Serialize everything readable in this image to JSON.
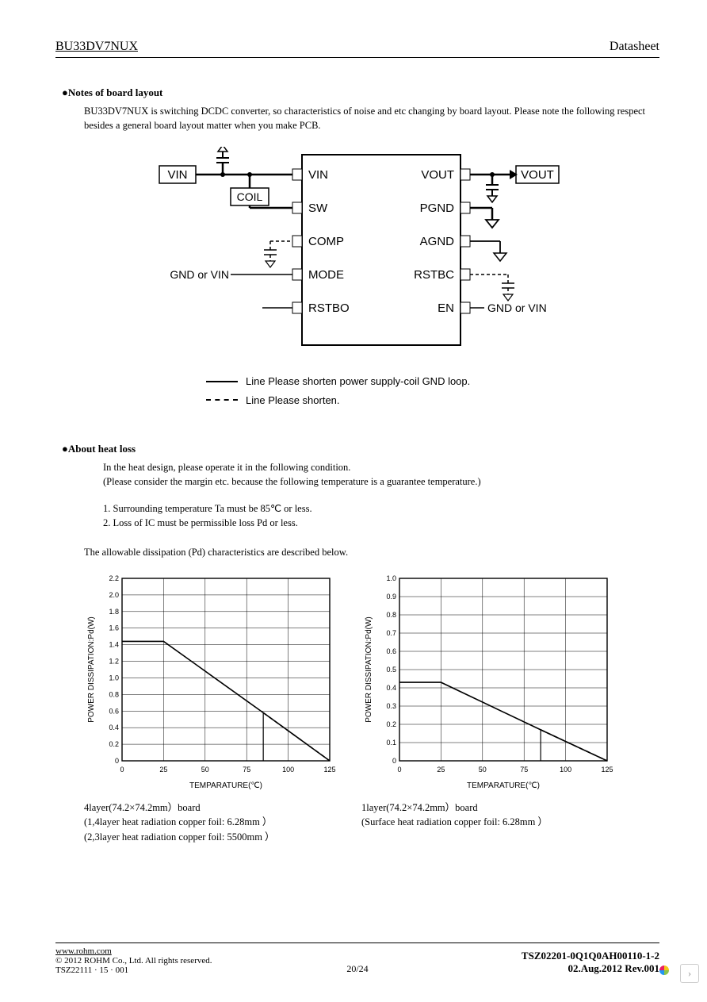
{
  "header": {
    "part_no": "BU33DV7NUX",
    "doc_type": "Datasheet"
  },
  "notes": {
    "title": "●Notes of board layout",
    "para": "BU33DV7NUX is switching DCDC converter, so characteristics of noise and etc changing by board layout. Please note the following respect besides a general board layout matter when you make PCB."
  },
  "block": {
    "left_pins": [
      "VIN",
      "SW",
      "COMP",
      "MODE",
      "RSTBO"
    ],
    "right_pins": [
      "VOUT",
      "PGND",
      "AGND",
      "RSTBC",
      "EN"
    ],
    "ext_vin": "VIN",
    "ext_coil": "COIL",
    "ext_vout": "VOUT",
    "gnd_or_vin_left": "GND or VIN",
    "gnd_or_vin_right": "GND or VIN",
    "legend_solid": "Line  Please shorten power supply-coil GND loop.",
    "legend_dash": "Line  Please shorten."
  },
  "heat": {
    "title": "●About heat loss",
    "intro1": "In the heat design, please operate it in the following condition.",
    "intro2": "(Please consider the margin etc. because the following temperature is a guarantee temperature.)",
    "cond1": "1. Surrounding temperature Ta must be 85℃ or less.",
    "cond2": "2. Loss of IC must be permissible loss Pd or less.",
    "desc": "The allowable dissipation (Pd) characteristics are described below."
  },
  "chart1": {
    "type": "line",
    "ylabel": "POWER DISSIPATION:Pd(W)",
    "xlabel": "TEMPARATURE(℃)",
    "xlim": [
      0,
      125
    ],
    "xtick_step": 25,
    "ylim": [
      0,
      2.2
    ],
    "ytick_step": 0.2,
    "yticks": [
      "0",
      "0.2",
      "0.4",
      "0.6",
      "0.8",
      "1.0",
      "1.2",
      "1.4",
      "1.6",
      "1.8",
      "2.0",
      "2.2"
    ],
    "solid_line": [
      [
        0,
        1.44
      ],
      [
        25,
        1.44
      ],
      [
        85,
        0.58
      ],
      [
        125,
        0.0
      ]
    ],
    "dash_line": [
      [
        85,
        0.58
      ],
      [
        125,
        0.0
      ]
    ],
    "vertical_marker_x": 85,
    "grid_color": "#000000",
    "background_color": "#ffffff",
    "line_width": 1.6,
    "caption1": "4layer(74.2×74.2mm）board",
    "caption2": "(1,4layer heat radiation copper foil:  6.28mm  ）",
    "caption3": "(2,3layer heat radiation copper foil:  5500mm  ）"
  },
  "chart2": {
    "type": "line",
    "ylabel": "POWER DISSIPATION:Pd(W)",
    "xlabel": "TEMPARATURE(℃)",
    "xlim": [
      0,
      125
    ],
    "xtick_step": 25,
    "ylim": [
      0,
      1.0
    ],
    "ytick_step": 0.1,
    "yticks": [
      "0",
      "0.1",
      "0.2",
      "0.3",
      "0.4",
      "0.5",
      "0.6",
      "0.7",
      "0.8",
      "0.9",
      "1.0"
    ],
    "solid_line": [
      [
        0,
        0.43
      ],
      [
        25,
        0.43
      ],
      [
        85,
        0.17
      ],
      [
        125,
        0.0
      ]
    ],
    "dash_line": [
      [
        85,
        0.17
      ],
      [
        125,
        0.0
      ]
    ],
    "vertical_marker_x": 85,
    "grid_color": "#000000",
    "background_color": "#ffffff",
    "line_width": 1.6,
    "caption1": "1layer(74.2×74.2mm）board",
    "caption2": "(Surface heat radiation copper foil:  6.28mm  ）"
  },
  "footer": {
    "url": "www.rohm.com",
    "copyright": "© 2012 ROHM Co., Ltd. All rights reserved.",
    "code": "TSZ22111 · 15 · 001",
    "page": "20/24",
    "doc_no": "TSZ02201-0Q1Q0AH00110-1-2",
    "date": "02.Aug.2012 Rev.001"
  }
}
